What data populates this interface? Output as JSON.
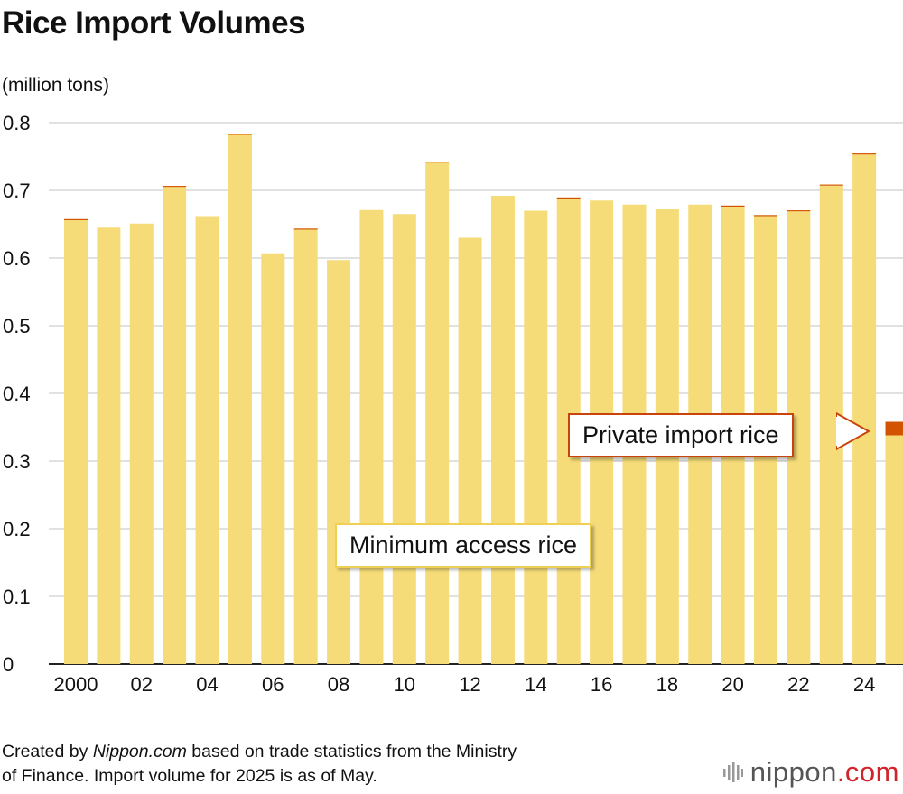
{
  "header": {
    "title": "Rice Import Volumes",
    "unit": "(million tons)"
  },
  "chart_data": {
    "type": "bar",
    "stacked": true,
    "categories": [
      "2000",
      "2001",
      "2002",
      "2003",
      "2004",
      "2005",
      "2006",
      "2007",
      "2008",
      "2009",
      "2010",
      "2011",
      "2012",
      "2013",
      "2014",
      "2015",
      "2016",
      "2017",
      "2018",
      "2019",
      "2020",
      "2021",
      "2022",
      "2023",
      "2024",
      "2025"
    ],
    "tick_labels": [
      "2000",
      "",
      "02",
      "",
      "04",
      "",
      "06",
      "",
      "08",
      "",
      "10",
      "",
      "12",
      "",
      "14",
      "",
      "16",
      "",
      "18",
      "",
      "20",
      "",
      "22",
      "",
      "24",
      ""
    ],
    "series": [
      {
        "name": "Minimum access rice",
        "color": "#f6dc78",
        "values": [
          0.656,
          0.645,
          0.651,
          0.705,
          0.662,
          0.782,
          0.607,
          0.642,
          0.597,
          0.671,
          0.665,
          0.741,
          0.63,
          0.692,
          0.67,
          0.688,
          0.685,
          0.679,
          0.672,
          0.679,
          0.676,
          0.662,
          0.669,
          0.707,
          0.753,
          0.338
        ]
      },
      {
        "name": "Private import rice",
        "color": "#d35400",
        "values": [
          0.001,
          0.0,
          0.0,
          0.001,
          0.0,
          0.001,
          0.0,
          0.001,
          0.0,
          0.0,
          0.0,
          0.001,
          0.0,
          0.0,
          0.0,
          0.001,
          0.0,
          0.0,
          0.0,
          0.0,
          0.001,
          0.001,
          0.001,
          0.001,
          0.001,
          0.02
        ]
      }
    ],
    "ylim": [
      0,
      0.8
    ],
    "yticks": [
      "0",
      "0.1",
      "0.2",
      "0.3",
      "0.4",
      "0.5",
      "0.6",
      "0.7",
      "0.8"
    ],
    "grid": true
  },
  "annotations": {
    "minimum_access": "Minimum access rice",
    "private_import": "Private import rice"
  },
  "footer": {
    "prefix": "Created by ",
    "source_name": "Nippon.com",
    "suffix": " based on trade statistics from the Ministry",
    "line2": "of Finance. Import volume for 2025 is as of May."
  },
  "brand": {
    "name": "nippon",
    "dot_com": ".com",
    "icon": "nippon-logo-mark",
    "color_dot": "#d2232a"
  }
}
